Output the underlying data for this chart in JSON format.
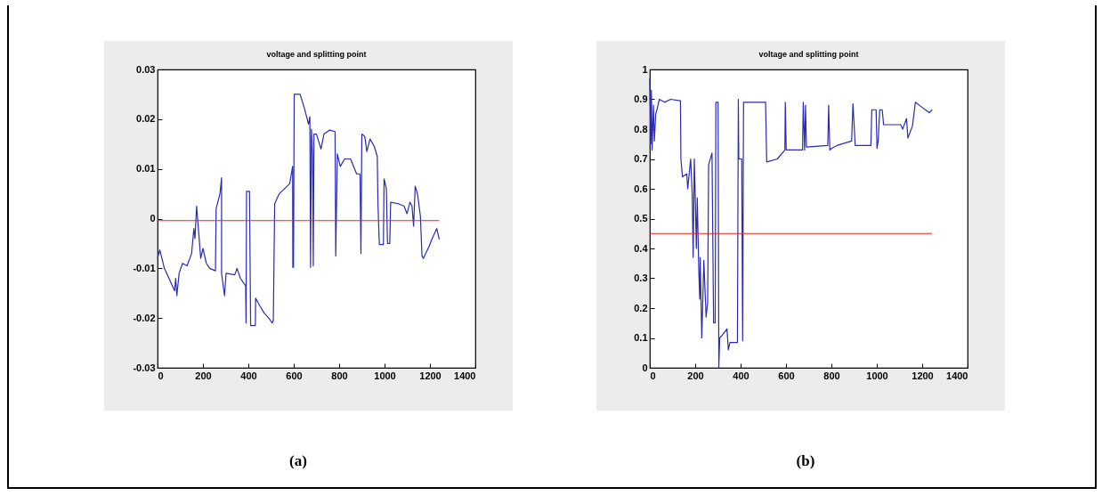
{
  "chart_data": [
    {
      "type": "line",
      "title": "voltage and splitting point",
      "xlim": [
        0,
        1400
      ],
      "xticks": [
        0,
        200,
        400,
        600,
        800,
        1000,
        1200,
        1400
      ],
      "ylim": [
        -0.03,
        0.03
      ],
      "yticks": [
        -0.03,
        -0.02,
        -0.01,
        0,
        0.01,
        0.02,
        0.03
      ],
      "annotations": [
        "(a)"
      ],
      "series": [
        {
          "color": "#2a2ab4",
          "x": [
            0,
            10,
            30,
            60,
            75,
            80,
            85,
            95,
            110,
            130,
            150,
            160,
            165,
            172,
            180,
            190,
            200,
            215,
            230,
            255,
            258,
            275,
            282,
            282,
            295,
            302,
            340,
            350,
            365,
            380,
            388,
            390,
            392,
            405,
            410,
            431,
            432,
            450,
            470,
            490,
            505,
            510,
            516,
            536,
            582,
            595,
            596,
            599,
            602,
            628,
            648,
            665,
            671,
            674,
            678,
            683,
            686,
            689,
            700,
            720,
            733,
            759,
            782,
            785,
            792,
            805,
            824,
            850,
            877,
            892,
            896,
            900,
            913,
            922,
            936,
            955,
            968,
            971,
            977,
            995,
            998,
            1008,
            1013,
            1023,
            1027,
            1060,
            1086,
            1099,
            1112,
            1121,
            1128,
            1135,
            1145,
            1158,
            1165,
            1171,
            1197,
            1210,
            1230,
            1241
          ],
          "values": [
            -0.008,
            -0.0063,
            -0.01,
            -0.013,
            -0.0145,
            -0.012,
            -0.0155,
            -0.011,
            -0.009,
            -0.0095,
            -0.007,
            -0.002,
            -0.004,
            0.0025,
            -0.002,
            -0.008,
            -0.006,
            -0.009,
            -0.01,
            -0.0105,
            0.002,
            0.005,
            0.0082,
            -0.011,
            -0.0155,
            -0.011,
            -0.0113,
            -0.01,
            -0.012,
            -0.013,
            -0.0135,
            -0.021,
            0.0055,
            0.0055,
            -0.0215,
            -0.0215,
            -0.016,
            -0.0175,
            -0.019,
            -0.02,
            -0.021,
            -0.0205,
            0.003,
            0.005,
            0.007,
            0.0105,
            -0.0098,
            -0.0098,
            0.025,
            0.025,
            0.022,
            0.019,
            0.0205,
            -0.0098,
            0.018,
            0.0125,
            -0.0095,
            0.017,
            0.017,
            0.014,
            0.017,
            0.0178,
            0.0175,
            -0.0075,
            0.013,
            0.0105,
            0.012,
            0.012,
            0.009,
            0.009,
            -0.007,
            0.017,
            0.0165,
            0.0135,
            0.016,
            0.0145,
            0.0125,
            0.003,
            -0.0052,
            -0.0052,
            0.008,
            0.006,
            -0.005,
            -0.005,
            0.0033,
            0.003,
            0.0025,
            0.001,
            0.0033,
            0.0025,
            -0.0015,
            0.0065,
            0.005,
            0.0005,
            -0.0075,
            -0.008,
            -0.0055,
            -0.004,
            -0.002,
            -0.0042
          ]
        },
        {
          "color": "#e8281e",
          "x": [
            0,
            1241
          ],
          "values": [
            -0.0004,
            -0.0004
          ]
        }
      ]
    },
    {
      "type": "line",
      "title": "voltage and splitting point",
      "xlim": [
        0,
        1400
      ],
      "xticks": [
        0,
        200,
        400,
        600,
        800,
        1000,
        1200,
        1400
      ],
      "ylim": [
        0,
        1
      ],
      "yticks": [
        0,
        0.1,
        0.2,
        0.3,
        0.4,
        0.5,
        0.6,
        0.7,
        0.8,
        0.9,
        1
      ],
      "annotations": [
        "(b)"
      ],
      "series": [
        {
          "color": "#2a2ab4",
          "x": [
            0,
            4,
            7,
            10,
            16,
            20,
            26,
            33,
            42,
            65,
            92,
            135,
            137,
            144,
            163,
            167,
            180,
            187,
            191,
            196,
            201,
            205,
            209,
            216,
            220,
            222,
            229,
            238,
            248,
            255,
            259,
            274,
            281,
            288,
            291,
            301,
            304,
            308,
            320,
            340,
            346,
            353,
            386,
            390,
            392,
            405,
            409,
            413,
            510,
            515,
            562,
            595,
            597,
            601,
            673,
            676,
            682,
            686,
            690,
            784,
            788,
            793,
            800,
            824,
            889,
            895,
            905,
            974,
            978,
            997,
            1001,
            1006,
            1013,
            1024,
            1030,
            1105,
            1114,
            1131,
            1137,
            1157,
            1170,
            1196,
            1231,
            1244
          ],
          "values": [
            0.97,
            0.75,
            0.93,
            0.73,
            0.88,
            0.76,
            0.85,
            0.87,
            0.9,
            0.89,
            0.9,
            0.895,
            0.7,
            0.64,
            0.65,
            0.6,
            0.7,
            0.58,
            0.37,
            0.7,
            0.55,
            0.4,
            0.57,
            0.32,
            0.23,
            0.37,
            0.1,
            0.36,
            0.17,
            0.22,
            0.68,
            0.72,
            0.15,
            0.15,
            0.89,
            0.89,
            0,
            0.1,
            0.11,
            0.13,
            0.06,
            0.085,
            0.085,
            0.9,
            0.7,
            0.7,
            0.09,
            0.89,
            0.89,
            0.69,
            0.7,
            0.73,
            0.89,
            0.73,
            0.73,
            0.89,
            0.73,
            0.88,
            0.74,
            0.745,
            0.88,
            0.73,
            0.735,
            0.745,
            0.76,
            0.885,
            0.745,
            0.745,
            0.865,
            0.865,
            0.735,
            0.76,
            0.865,
            0.865,
            0.815,
            0.815,
            0.8,
            0.835,
            0.77,
            0.81,
            0.89,
            0.875,
            0.855,
            0.865
          ]
        },
        {
          "color": "#e8281e",
          "x": [
            0,
            1244
          ],
          "values": [
            0.45,
            0.45
          ]
        }
      ]
    }
  ]
}
